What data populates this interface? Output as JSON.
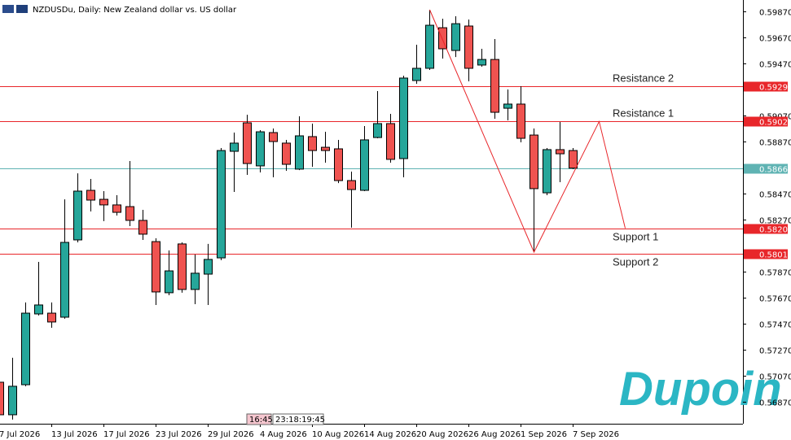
{
  "chart_data": {
    "type": "candlestick",
    "title": "NZDUSDu, Daily:  New Zealand dollar vs. US dollar",
    "brand": "Dupoin",
    "time_labels": [
      "16:45",
      "23:18:19:45"
    ],
    "up_color": "#26a69a",
    "down_color": "#ef5350",
    "ylim": [
      0.56701,
      0.59958
    ],
    "yticks": [
      {
        "value": 0.5987,
        "label": "0.59870"
      },
      {
        "value": 0.5967,
        "label": "0.59670"
      },
      {
        "value": 0.5947,
        "label": "0.59470"
      },
      {
        "value": 0.5907,
        "label": "0.59070"
      },
      {
        "value": 0.5887,
        "label": "0.58870"
      },
      {
        "value": 0.5847,
        "label": "0.58470"
      },
      {
        "value": 0.5827,
        "label": "0.58270"
      },
      {
        "value": 0.5787,
        "label": "0.57870"
      },
      {
        "value": 0.5767,
        "label": "0.57670"
      },
      {
        "value": 0.5747,
        "label": "0.57470"
      },
      {
        "value": 0.5727,
        "label": "0.57270"
      },
      {
        "value": 0.5707,
        "label": "0.57070"
      },
      {
        "value": 0.5687,
        "label": "0.56870"
      }
    ],
    "categories": [
      "7 Jul 2026",
      null,
      null,
      null,
      "13 Jul 2026",
      null,
      null,
      null,
      "17 Jul 2026",
      null,
      null,
      null,
      "23 Jul 2026",
      null,
      null,
      null,
      "29 Jul 2026",
      null,
      null,
      null,
      "4 Aug 2026",
      null,
      null,
      null,
      "10 Aug 2026",
      null,
      null,
      null,
      "14 Aug 2026",
      null,
      null,
      null,
      "20 Aug 2026",
      null,
      null,
      null,
      "26 Aug 2026",
      null,
      null,
      null,
      "1 Sep 2026",
      null,
      null,
      null,
      "7 Sep 2026"
    ],
    "open": [
      0.5702,
      0.5677,
      0.57001,
      0.57545,
      0.57551,
      0.5752,
      0.58114,
      0.58495,
      0.58426,
      0.58383,
      0.5837,
      0.58264,
      0.58101,
      0.57708,
      0.58083,
      0.57733,
      0.57851,
      0.57976,
      0.58795,
      0.59014,
      0.58683,
      0.58939,
      0.58858,
      0.58658,
      0.58908,
      0.58826,
      0.58814,
      0.5857,
      0.58495,
      0.58901,
      0.59008,
      0.58739,
      0.59339,
      0.59433,
      0.59745,
      0.5957,
      0.59758,
      0.59458,
      0.59501,
      0.59126,
      0.59158,
      0.5892,
      0.58476,
      0.58808,
      0.58801
    ],
    "high": [
      0.5707,
      0.57208,
      0.57633,
      0.57945,
      0.57633,
      0.58426,
      0.58626,
      0.58583,
      0.58489,
      0.58458,
      0.5872,
      0.58345,
      0.58126,
      0.58033,
      0.58095,
      0.58001,
      0.58083,
      0.5882,
      0.58939,
      0.59076,
      0.58958,
      0.5897,
      0.58883,
      0.59064,
      0.59008,
      0.58945,
      0.58883,
      0.58639,
      0.58989,
      0.59258,
      0.59083,
      0.59376,
      0.59614,
      0.59883,
      0.59814,
      0.59833,
      0.59808,
      0.59583,
      0.59658,
      0.5927,
      0.59295,
      0.5897,
      0.5882,
      0.5902,
      0.5882
    ],
    "low": [
      0.56739,
      0.56733,
      0.56989,
      0.57533,
      0.57439,
      0.57508,
      0.58095,
      0.58333,
      0.58258,
      0.58301,
      0.5822,
      0.58114,
      0.57614,
      0.57689,
      0.57708,
      0.5762,
      0.57614,
      0.57958,
      0.58483,
      0.58614,
      0.58633,
      0.58595,
      0.58645,
      0.58651,
      0.58676,
      0.58708,
      0.58551,
      0.58208,
      0.58489,
      0.58895,
      0.58708,
      0.58595,
      0.59314,
      0.5942,
      0.59508,
      0.5952,
      0.59333,
      0.59445,
      0.59045,
      0.59033,
      0.58864,
      0.5802,
      0.58458,
      0.58558,
      0.58658
    ],
    "close": [
      0.5677,
      0.56989,
      0.57551,
      0.57614,
      0.57483,
      0.58095,
      0.58489,
      0.5842,
      0.58383,
      0.58326,
      0.58264,
      0.58158,
      0.57714,
      0.57876,
      0.57733,
      0.57858,
      0.57964,
      0.58801,
      0.58858,
      0.58701,
      0.58945,
      0.5887,
      0.58695,
      0.58914,
      0.58801,
      0.58801,
      0.5857,
      0.58501,
      0.58883,
      0.59008,
      0.58733,
      0.59358,
      0.59433,
      0.59764,
      0.59583,
      0.59776,
      0.59433,
      0.59501,
      0.59095,
      0.59158,
      0.58895,
      0.58508,
      0.58808,
      0.58776,
      0.58666
    ],
    "levels": [
      {
        "name": "Resistance 2",
        "value": 0.59293,
        "label": "0.59293",
        "color": "#e8262a"
      },
      {
        "name": "Resistance 1",
        "value": 0.59024,
        "label": "0.59024",
        "color": "#e8262a"
      },
      {
        "value": 0.58666,
        "label": "0.58666",
        "color": "#5fb3b3"
      },
      {
        "name": "Support 1",
        "value": 0.58204,
        "label": "0.58204",
        "color": "#e8262a"
      },
      {
        "name": "Support 2",
        "value": 0.5801,
        "label": "0.58010",
        "color": "#e8262a"
      }
    ],
    "projection": {
      "color": "#e8262a",
      "x": [
        33,
        41,
        46,
        48
      ],
      "values": [
        0.59883,
        0.5802,
        0.59024,
        0.58204
      ]
    }
  }
}
